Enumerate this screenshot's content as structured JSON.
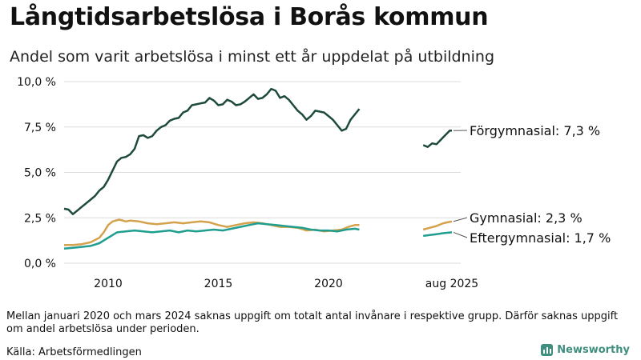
{
  "header": {
    "title": "Långtidsarbetslösa i Borås kommun",
    "subtitle": "Andel som varit arbetslösa i minst ett år uppdelat på utbildning"
  },
  "footer": {
    "note": "Mellan januari 2020 och mars 2024 saknas uppgift om totalt antal invånare i respektive grupp. Därför saknas uppgift om andel arbetslösa under perioden.",
    "source": "Källa: Arbetsförmedlingen",
    "brand": "Newsworthy"
  },
  "chart_data": {
    "type": "line",
    "title": "Långtidsarbetslösa i Borås kommun",
    "subtitle": "Andel som varit arbetslösa i minst ett år uppdelat på utbildning",
    "ylim": [
      0,
      10
    ],
    "y_ticks": [
      0,
      2.5,
      5,
      7.5,
      10
    ],
    "y_tick_labels": [
      "0,0 %",
      "2,5 %",
      "5,0 %",
      "7,5 %",
      "10,0 %"
    ],
    "x_tick_labels": [
      {
        "x": 2010,
        "label": "2010"
      },
      {
        "x": 2015,
        "label": "2015"
      },
      {
        "x": 2020,
        "label": "2020"
      },
      {
        "x": 2025.6,
        "label": "aug 2025"
      }
    ],
    "x_range": [
      2008,
      2026
    ],
    "grid": "horizontal",
    "colors": {
      "forgymnasial": "#1e4a3e",
      "gymnasial": "#d4a24c",
      "eftergymnasial": "#1f9e8f"
    },
    "series": [
      {
        "name": "Förgymnasial",
        "label": "Förgymnasial: 7,3 %",
        "color": "#1e4a3e",
        "segments": [
          [
            [
              2008.0,
              3.0
            ],
            [
              2008.2,
              2.95
            ],
            [
              2008.4,
              2.7
            ],
            [
              2008.6,
              2.9
            ],
            [
              2008.8,
              3.1
            ],
            [
              2009.0,
              3.3
            ],
            [
              2009.2,
              3.5
            ],
            [
              2009.4,
              3.7
            ],
            [
              2009.6,
              4.0
            ],
            [
              2009.8,
              4.2
            ],
            [
              2010.0,
              4.6
            ],
            [
              2010.2,
              5.1
            ],
            [
              2010.4,
              5.6
            ],
            [
              2010.6,
              5.8
            ],
            [
              2010.8,
              5.85
            ],
            [
              2011.0,
              6.0
            ],
            [
              2011.2,
              6.3
            ],
            [
              2011.4,
              7.0
            ],
            [
              2011.6,
              7.05
            ],
            [
              2011.8,
              6.9
            ],
            [
              2012.0,
              7.0
            ],
            [
              2012.2,
              7.3
            ],
            [
              2012.4,
              7.5
            ],
            [
              2012.6,
              7.6
            ],
            [
              2012.8,
              7.85
            ],
            [
              2013.0,
              7.95
            ],
            [
              2013.2,
              8.0
            ],
            [
              2013.4,
              8.3
            ],
            [
              2013.6,
              8.4
            ],
            [
              2013.8,
              8.7
            ],
            [
              2014.0,
              8.75
            ],
            [
              2014.2,
              8.8
            ],
            [
              2014.4,
              8.85
            ],
            [
              2014.6,
              9.1
            ],
            [
              2014.8,
              8.95
            ],
            [
              2015.0,
              8.7
            ],
            [
              2015.2,
              8.75
            ],
            [
              2015.4,
              9.0
            ],
            [
              2015.6,
              8.9
            ],
            [
              2015.8,
              8.7
            ],
            [
              2016.0,
              8.75
            ],
            [
              2016.2,
              8.9
            ],
            [
              2016.4,
              9.1
            ],
            [
              2016.6,
              9.3
            ],
            [
              2016.8,
              9.05
            ],
            [
              2017.0,
              9.1
            ],
            [
              2017.2,
              9.3
            ],
            [
              2017.4,
              9.6
            ],
            [
              2017.6,
              9.5
            ],
            [
              2017.8,
              9.1
            ],
            [
              2018.0,
              9.2
            ],
            [
              2018.2,
              9.0
            ],
            [
              2018.4,
              8.7
            ],
            [
              2018.6,
              8.4
            ],
            [
              2018.8,
              8.2
            ],
            [
              2019.0,
              7.9
            ],
            [
              2019.2,
              8.1
            ],
            [
              2019.4,
              8.4
            ],
            [
              2019.6,
              8.35
            ],
            [
              2019.8,
              8.3
            ],
            [
              2020.0,
              8.1
            ],
            [
              2020.2,
              7.9
            ],
            [
              2020.4,
              7.6
            ],
            [
              2020.6,
              7.3
            ],
            [
              2020.8,
              7.4
            ],
            [
              2021.0,
              7.9
            ],
            [
              2021.2,
              8.2
            ],
            [
              2021.4,
              8.5
            ]
          ],
          [
            [
              2024.3,
              6.5
            ],
            [
              2024.5,
              6.4
            ],
            [
              2024.7,
              6.6
            ],
            [
              2024.9,
              6.55
            ],
            [
              2025.1,
              6.8
            ],
            [
              2025.3,
              7.05
            ],
            [
              2025.5,
              7.3
            ],
            [
              2025.6,
              7.3
            ]
          ]
        ]
      },
      {
        "name": "Gymnasial",
        "label": "Gymnasial: 2,3 %",
        "color": "#d4a24c",
        "segments": [
          [
            [
              2008.0,
              1.0
            ],
            [
              2008.4,
              1.0
            ],
            [
              2008.8,
              1.05
            ],
            [
              2009.2,
              1.15
            ],
            [
              2009.6,
              1.4
            ],
            [
              2009.8,
              1.7
            ],
            [
              2010.0,
              2.1
            ],
            [
              2010.2,
              2.3
            ],
            [
              2010.5,
              2.4
            ],
            [
              2010.8,
              2.3
            ],
            [
              2011.0,
              2.35
            ],
            [
              2011.4,
              2.3
            ],
            [
              2011.8,
              2.2
            ],
            [
              2012.2,
              2.15
            ],
            [
              2012.6,
              2.2
            ],
            [
              2013.0,
              2.25
            ],
            [
              2013.4,
              2.2
            ],
            [
              2013.8,
              2.25
            ],
            [
              2014.2,
              2.3
            ],
            [
              2014.6,
              2.25
            ],
            [
              2015.0,
              2.1
            ],
            [
              2015.4,
              2.0
            ],
            [
              2015.8,
              2.1
            ],
            [
              2016.2,
              2.2
            ],
            [
              2016.6,
              2.25
            ],
            [
              2017.0,
              2.2
            ],
            [
              2017.4,
              2.1
            ],
            [
              2017.8,
              2.0
            ],
            [
              2018.2,
              2.0
            ],
            [
              2018.6,
              1.95
            ],
            [
              2019.0,
              1.8
            ],
            [
              2019.4,
              1.85
            ],
            [
              2019.8,
              1.75
            ],
            [
              2020.2,
              1.8
            ],
            [
              2020.6,
              1.85
            ],
            [
              2020.9,
              2.0
            ],
            [
              2021.2,
              2.1
            ],
            [
              2021.4,
              2.1
            ]
          ],
          [
            [
              2024.3,
              1.85
            ],
            [
              2024.6,
              1.95
            ],
            [
              2024.9,
              2.05
            ],
            [
              2025.2,
              2.2
            ],
            [
              2025.4,
              2.25
            ],
            [
              2025.6,
              2.3
            ]
          ]
        ]
      },
      {
        "name": "Eftergymnasial",
        "label": "Eftergymnasial: 1,7 %",
        "color": "#1f9e8f",
        "segments": [
          [
            [
              2008.0,
              0.8
            ],
            [
              2008.4,
              0.85
            ],
            [
              2008.8,
              0.9
            ],
            [
              2009.2,
              0.95
            ],
            [
              2009.6,
              1.1
            ],
            [
              2010.0,
              1.4
            ],
            [
              2010.4,
              1.7
            ],
            [
              2010.8,
              1.75
            ],
            [
              2011.2,
              1.8
            ],
            [
              2011.6,
              1.75
            ],
            [
              2012.0,
              1.7
            ],
            [
              2012.4,
              1.75
            ],
            [
              2012.8,
              1.8
            ],
            [
              2013.2,
              1.7
            ],
            [
              2013.6,
              1.8
            ],
            [
              2014.0,
              1.75
            ],
            [
              2014.4,
              1.8
            ],
            [
              2014.8,
              1.85
            ],
            [
              2015.2,
              1.8
            ],
            [
              2015.6,
              1.9
            ],
            [
              2016.0,
              2.0
            ],
            [
              2016.4,
              2.1
            ],
            [
              2016.8,
              2.2
            ],
            [
              2017.2,
              2.15
            ],
            [
              2017.6,
              2.1
            ],
            [
              2018.0,
              2.05
            ],
            [
              2018.4,
              2.0
            ],
            [
              2018.8,
              1.95
            ],
            [
              2019.2,
              1.85
            ],
            [
              2019.6,
              1.8
            ],
            [
              2020.0,
              1.8
            ],
            [
              2020.4,
              1.75
            ],
            [
              2020.8,
              1.85
            ],
            [
              2021.2,
              1.9
            ],
            [
              2021.4,
              1.85
            ]
          ],
          [
            [
              2024.3,
              1.5
            ],
            [
              2024.6,
              1.55
            ],
            [
              2024.9,
              1.6
            ],
            [
              2025.2,
              1.65
            ],
            [
              2025.6,
              1.7
            ]
          ]
        ]
      }
    ]
  }
}
